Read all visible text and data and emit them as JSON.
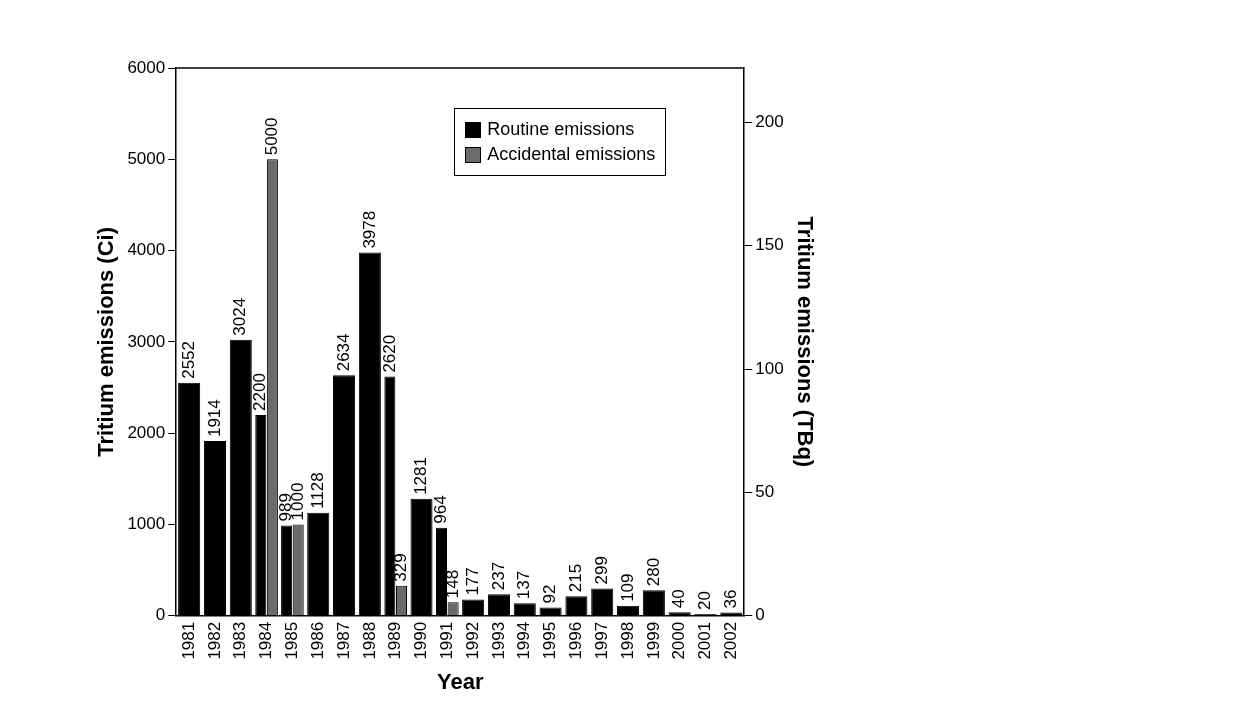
{
  "chart_data": {
    "type": "bar",
    "xlabel": "Year",
    "ylabel": "Tritium emissions (Ci)",
    "y2label": "Tritium emissions (TBq)",
    "categories": [
      "1981",
      "1982",
      "1983",
      "1984",
      "1985",
      "1986",
      "1987",
      "1988",
      "1989",
      "1990",
      "1991",
      "1992",
      "1993",
      "1994",
      "1995",
      "1996",
      "1997",
      "1998",
      "1999",
      "2000",
      "2001",
      "2002"
    ],
    "series": [
      {
        "name": "Routine emissions",
        "color": "#000000",
        "values": [
          2552,
          1914,
          3024,
          2200,
          989,
          1128,
          2634,
          3978,
          2620,
          1281,
          964,
          177,
          237,
          137,
          92,
          215,
          299,
          109,
          280,
          40,
          20,
          36
        ]
      },
      {
        "name": "Accidental emissions",
        "color": "#6b6b6b",
        "values": [
          null,
          null,
          null,
          5000,
          1000,
          null,
          null,
          null,
          329,
          null,
          148,
          null,
          null,
          null,
          null,
          null,
          null,
          null,
          null,
          null,
          null,
          null
        ]
      }
    ],
    "ylim": [
      0,
      6000
    ],
    "yticks": [
      0,
      1000,
      2000,
      3000,
      4000,
      5000,
      6000
    ],
    "y2lim": [
      0,
      222
    ],
    "y2ticks": [
      0,
      50,
      100,
      150,
      200
    ],
    "grid": false,
    "legend": "top right",
    "data_labels": true
  }
}
